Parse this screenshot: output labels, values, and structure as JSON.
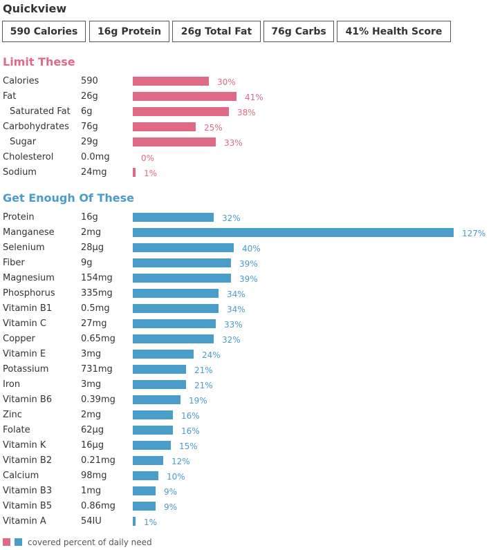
{
  "quickview": {
    "title": "Quickview",
    "items": [
      "590 Calories",
      "16g Protein",
      "26g Total Fat",
      "76g Carbs",
      "41% Health Score"
    ]
  },
  "colors": {
    "limit": "#e06a85",
    "enough": "#4a9cc9"
  },
  "chart_data": [
    {
      "type": "bar",
      "title": "Limit These",
      "orientation": "horizontal",
      "unit": "percent of daily need",
      "categories": [
        "Calories",
        "Fat",
        "Saturated Fat",
        "Carbohydrates",
        "Sugar",
        "Cholesterol",
        "Sodium"
      ],
      "amounts": [
        "590",
        "26g",
        "6g",
        "76g",
        "29g",
        "0.0mg",
        "24mg"
      ],
      "values": [
        30,
        41,
        38,
        25,
        33,
        0,
        1
      ],
      "labels": [
        "30%",
        "41%",
        "38%",
        "25%",
        "33%",
        "0%",
        "1%"
      ],
      "sub_items": [
        false,
        false,
        true,
        false,
        true,
        false,
        false
      ]
    },
    {
      "type": "bar",
      "title": "Get Enough Of These",
      "orientation": "horizontal",
      "unit": "percent of daily need",
      "categories": [
        "Protein",
        "Manganese",
        "Selenium",
        "Fiber",
        "Magnesium",
        "Phosphorus",
        "Vitamin B1",
        "Vitamin C",
        "Copper",
        "Vitamin E",
        "Potassium",
        "Iron",
        "Vitamin B6",
        "Zinc",
        "Folate",
        "Vitamin K",
        "Vitamin B2",
        "Calcium",
        "Vitamin B3",
        "Vitamin B5",
        "Vitamin A"
      ],
      "amounts": [
        "16g",
        "2mg",
        "28µg",
        "9g",
        "154mg",
        "335mg",
        "0.5mg",
        "27mg",
        "0.65mg",
        "3mg",
        "731mg",
        "3mg",
        "0.39mg",
        "2mg",
        "62µg",
        "16µg",
        "0.21mg",
        "98mg",
        "1mg",
        "0.86mg",
        "54IU"
      ],
      "values": [
        32,
        127,
        40,
        39,
        39,
        34,
        34,
        33,
        32,
        24,
        21,
        21,
        19,
        16,
        16,
        15,
        12,
        10,
        9,
        9,
        1
      ],
      "labels": [
        "32%",
        "127%",
        "40%",
        "39%",
        "39%",
        "34%",
        "34%",
        "33%",
        "32%",
        "24%",
        "21%",
        "21%",
        "19%",
        "16%",
        "16%",
        "15%",
        "12%",
        "10%",
        "9%",
        "9%",
        "1%"
      ],
      "sub_items": [
        false,
        false,
        false,
        false,
        false,
        false,
        false,
        false,
        false,
        false,
        false,
        false,
        false,
        false,
        false,
        false,
        false,
        false,
        false,
        false,
        false
      ]
    }
  ],
  "legend": {
    "text": "covered percent of daily need"
  }
}
